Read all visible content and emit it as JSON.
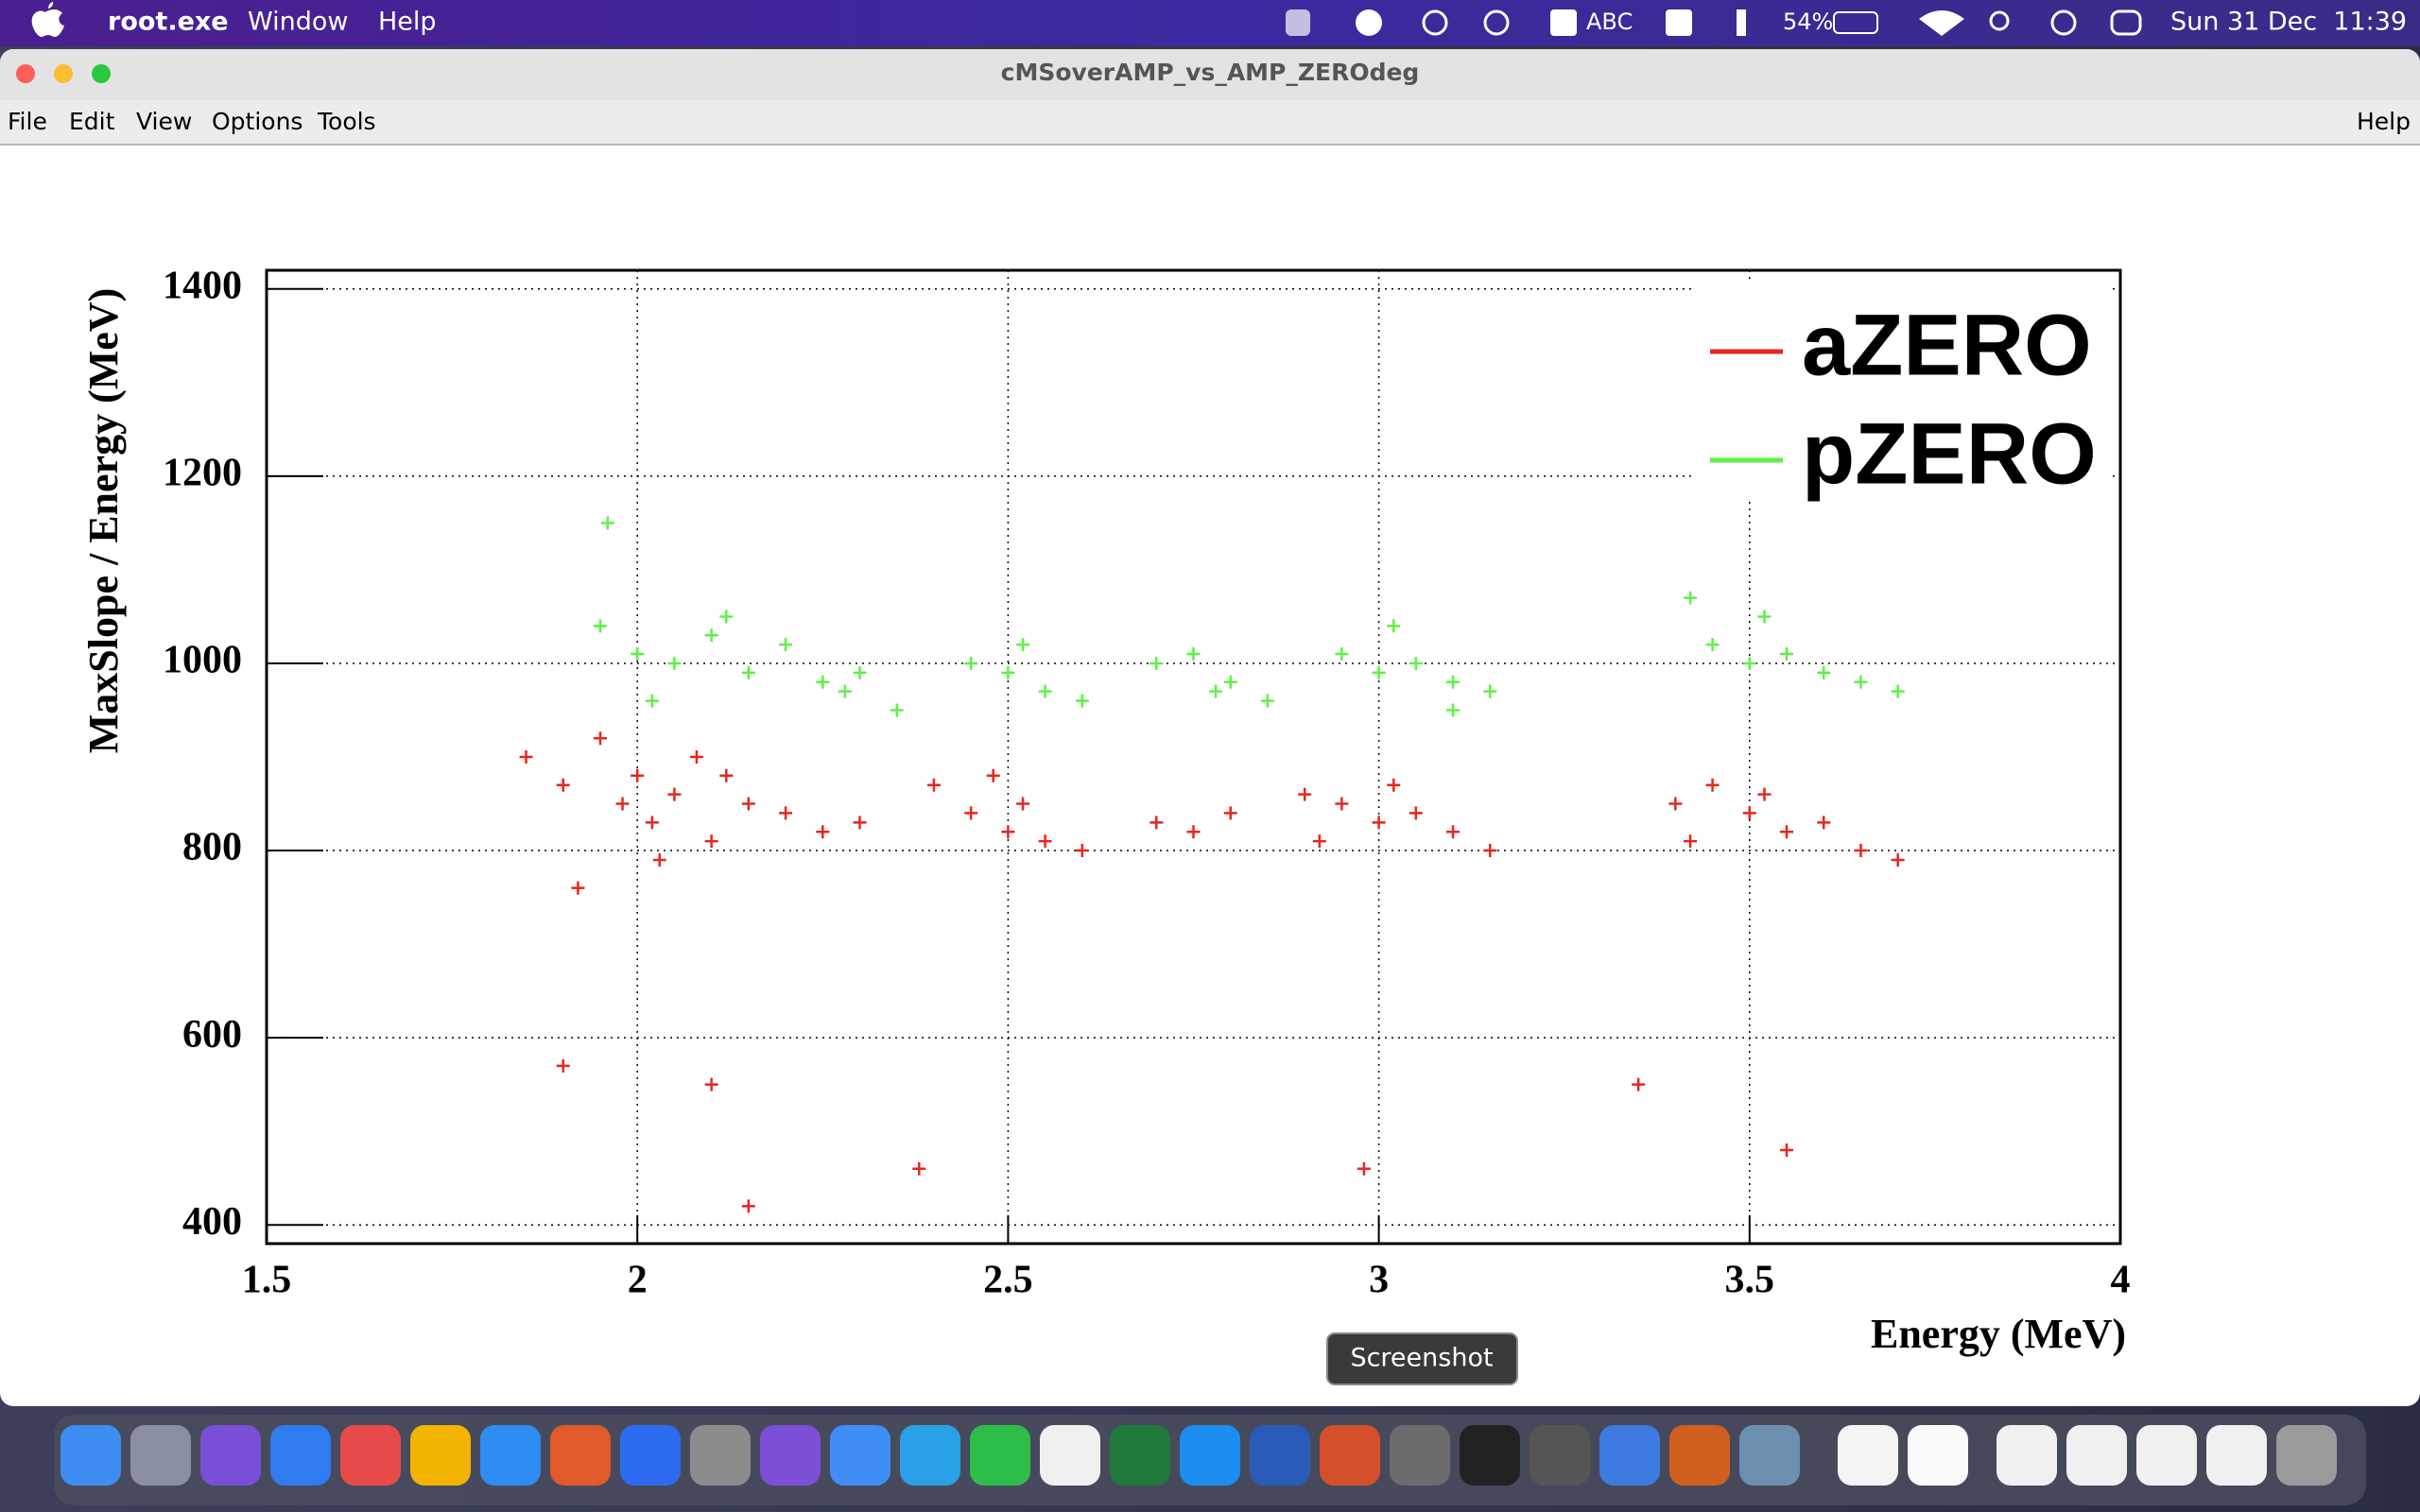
{
  "menubar": {
    "app": "root.exe",
    "menus": [
      "Window",
      "Help"
    ],
    "status": {
      "input": "ABC",
      "battery": "54%",
      "clock": "Sun 31 Dec  11:39"
    }
  },
  "window": {
    "title": "cMSoverAMP_vs_AMP_ZEROdeg",
    "menus": [
      "File",
      "Edit",
      "View",
      "Options",
      "Tools"
    ],
    "help": "Help"
  },
  "chart_data": {
    "type": "scatter",
    "x_label": "Energy (MeV)",
    "y_label": "MaxSlope / Energy (MeV)",
    "xlim": [
      1.5,
      4
    ],
    "ylim": [
      380,
      1420
    ],
    "xticks": [
      1.5,
      2,
      2.5,
      3,
      3.5,
      4
    ],
    "yticks": [
      400,
      600,
      800,
      1000,
      1200,
      1400
    ],
    "grid": true,
    "legend": "upper right",
    "series": [
      {
        "name": "aZERO",
        "color": "#e8251e",
        "x": [
          1.85,
          1.9,
          1.95,
          1.98,
          2.0,
          2.02,
          2.05,
          2.08,
          2.1,
          2.15,
          2.2,
          2.25,
          2.3,
          1.92,
          2.03,
          2.12,
          2.4,
          2.45,
          2.5,
          2.55,
          2.6,
          2.48,
          2.52,
          2.7,
          2.75,
          2.8,
          2.9,
          2.95,
          3.0,
          3.05,
          3.1,
          2.92,
          3.02,
          3.15,
          3.4,
          3.45,
          3.5,
          3.55,
          3.6,
          3.65,
          3.52,
          3.42,
          3.7,
          1.9,
          2.1,
          2.38,
          2.98,
          3.35,
          3.55,
          2.15
        ],
        "y": [
          900,
          870,
          920,
          850,
          880,
          830,
          860,
          900,
          810,
          850,
          840,
          820,
          830,
          760,
          790,
          880,
          870,
          840,
          820,
          810,
          800,
          880,
          850,
          830,
          820,
          840,
          860,
          850,
          830,
          840,
          820,
          810,
          870,
          800,
          850,
          870,
          840,
          820,
          830,
          800,
          860,
          810,
          790,
          570,
          550,
          460,
          460,
          550,
          480,
          420
        ]
      },
      {
        "name": "pZERO",
        "color": "#5ef046",
        "x": [
          1.95,
          2.0,
          2.05,
          2.1,
          2.15,
          2.2,
          2.25,
          2.3,
          2.35,
          2.02,
          2.12,
          2.28,
          2.45,
          2.5,
          2.55,
          2.6,
          2.52,
          2.7,
          2.75,
          2.8,
          2.85,
          2.78,
          2.95,
          3.0,
          3.05,
          3.1,
          3.15,
          3.02,
          3.1,
          3.45,
          3.5,
          3.55,
          3.6,
          3.65,
          3.52,
          3.7,
          1.96,
          3.42
        ],
        "y": [
          1040,
          1010,
          1000,
          1030,
          990,
          1020,
          980,
          990,
          950,
          960,
          1050,
          970,
          1000,
          990,
          970,
          960,
          1020,
          1000,
          1010,
          980,
          960,
          970,
          1010,
          990,
          1000,
          980,
          970,
          1040,
          950,
          1020,
          1000,
          1010,
          990,
          980,
          1050,
          970,
          1150,
          1070
        ]
      }
    ]
  },
  "dock": {
    "tooltip": "Screenshot"
  }
}
